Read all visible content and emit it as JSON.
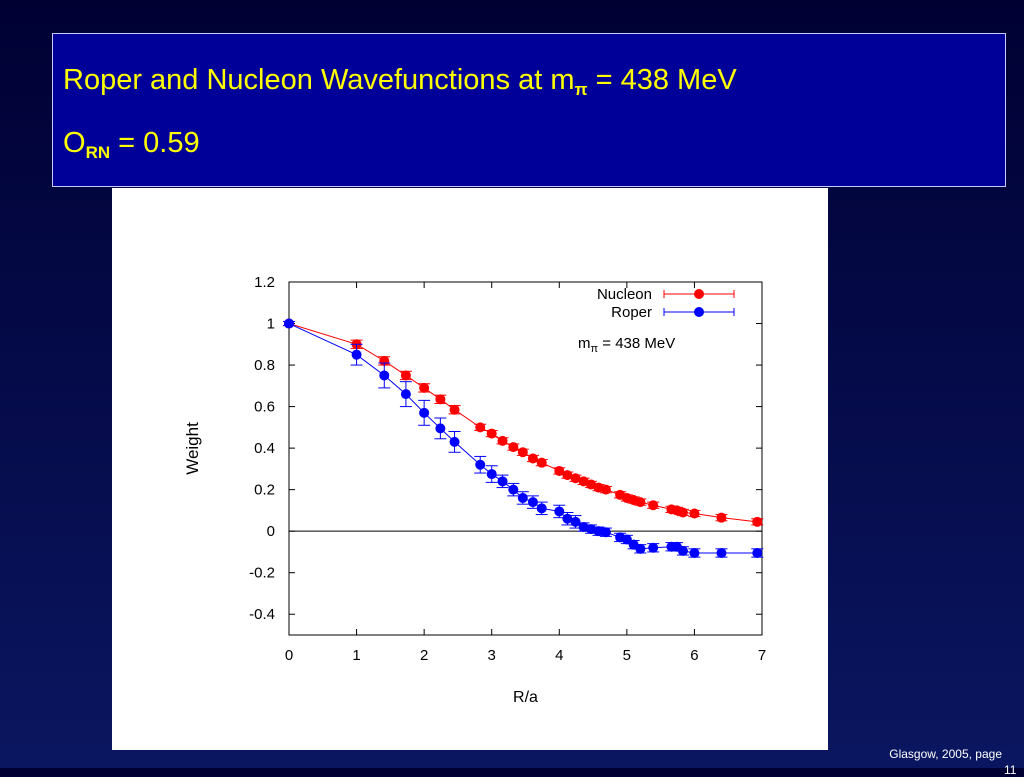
{
  "slide": {
    "title_line1": "Roper and Nucleon Wavefunctions at m",
    "title_line1_sub": "π",
    "title_line1_tail": " = 438 MeV",
    "title_line2": "O",
    "title_line2_sub": "RN",
    "title_line2_tail": " = 0.59",
    "footer": "Glasgow, 2005,  page",
    "footer_page": "11"
  },
  "colors": {
    "background": "#000033",
    "title_box": "#000099",
    "title_text": "#ffff00",
    "nucleon": "#ff0000",
    "roper": "#0000ff"
  },
  "chart_data": {
    "type": "scatter",
    "xlabel": "R/a",
    "ylabel": "Weight",
    "xlim": [
      0,
      7
    ],
    "ylim": [
      -0.5,
      1.2
    ],
    "xticks": [
      "0",
      "1",
      "2",
      "3",
      "4",
      "5",
      "6",
      "7"
    ],
    "yticks": [
      "1.2",
      "1",
      "0.8",
      "0.6",
      "0.4",
      "0.2",
      "0",
      "-0.2",
      "-0.4"
    ],
    "annotation": "m_π = 438 MeV",
    "legend_position": "top-right",
    "series": [
      {
        "name": "Nucleon",
        "color": "#ff0000",
        "x": [
          0,
          1.0,
          1.41,
          1.73,
          2.0,
          2.24,
          2.45,
          2.83,
          3.0,
          3.16,
          3.32,
          3.46,
          3.61,
          3.74,
          4.0,
          4.12,
          4.24,
          4.36,
          4.47,
          4.58,
          4.69,
          4.9,
          5.0,
          5.1,
          5.2,
          5.39,
          5.66,
          5.74,
          5.83,
          6.0,
          6.4,
          6.93
        ],
        "y": [
          1.0,
          0.9,
          0.82,
          0.75,
          0.69,
          0.635,
          0.585,
          0.5,
          0.47,
          0.435,
          0.405,
          0.38,
          0.35,
          0.33,
          0.29,
          0.27,
          0.255,
          0.24,
          0.225,
          0.21,
          0.2,
          0.175,
          0.16,
          0.15,
          0.14,
          0.125,
          0.105,
          0.1,
          0.09,
          0.085,
          0.065,
          0.045
        ],
        "err": [
          0.01,
          0.02,
          0.02,
          0.02,
          0.02,
          0.02,
          0.02,
          0.015,
          0.015,
          0.015,
          0.015,
          0.015,
          0.015,
          0.015,
          0.015,
          0.015,
          0.015,
          0.015,
          0.015,
          0.015,
          0.015,
          0.015,
          0.015,
          0.015,
          0.015,
          0.015,
          0.015,
          0.015,
          0.015,
          0.015,
          0.015,
          0.015
        ]
      },
      {
        "name": "Roper",
        "color": "#0000ff",
        "x": [
          0,
          1.0,
          1.41,
          1.73,
          2.0,
          2.24,
          2.45,
          2.83,
          3.0,
          3.16,
          3.32,
          3.46,
          3.61,
          3.74,
          4.0,
          4.12,
          4.24,
          4.36,
          4.47,
          4.58,
          4.69,
          4.9,
          5.0,
          5.1,
          5.2,
          5.39,
          5.66,
          5.74,
          5.83,
          6.0,
          6.4,
          6.93
        ],
        "y": [
          1.0,
          0.85,
          0.75,
          0.66,
          0.57,
          0.495,
          0.43,
          0.32,
          0.275,
          0.24,
          0.2,
          0.16,
          0.14,
          0.11,
          0.095,
          0.06,
          0.045,
          0.02,
          0.01,
          0.0,
          -0.005,
          -0.03,
          -0.04,
          -0.065,
          -0.085,
          -0.08,
          -0.075,
          -0.075,
          -0.095,
          -0.105,
          -0.105,
          -0.105
        ],
        "err": [
          0.01,
          0.05,
          0.06,
          0.06,
          0.06,
          0.05,
          0.05,
          0.04,
          0.04,
          0.03,
          0.03,
          0.03,
          0.03,
          0.03,
          0.03,
          0.03,
          0.03,
          0.02,
          0.02,
          0.02,
          0.02,
          0.02,
          0.02,
          0.02,
          0.02,
          0.02,
          0.02,
          0.02,
          0.02,
          0.02,
          0.02,
          0.02
        ]
      }
    ]
  }
}
